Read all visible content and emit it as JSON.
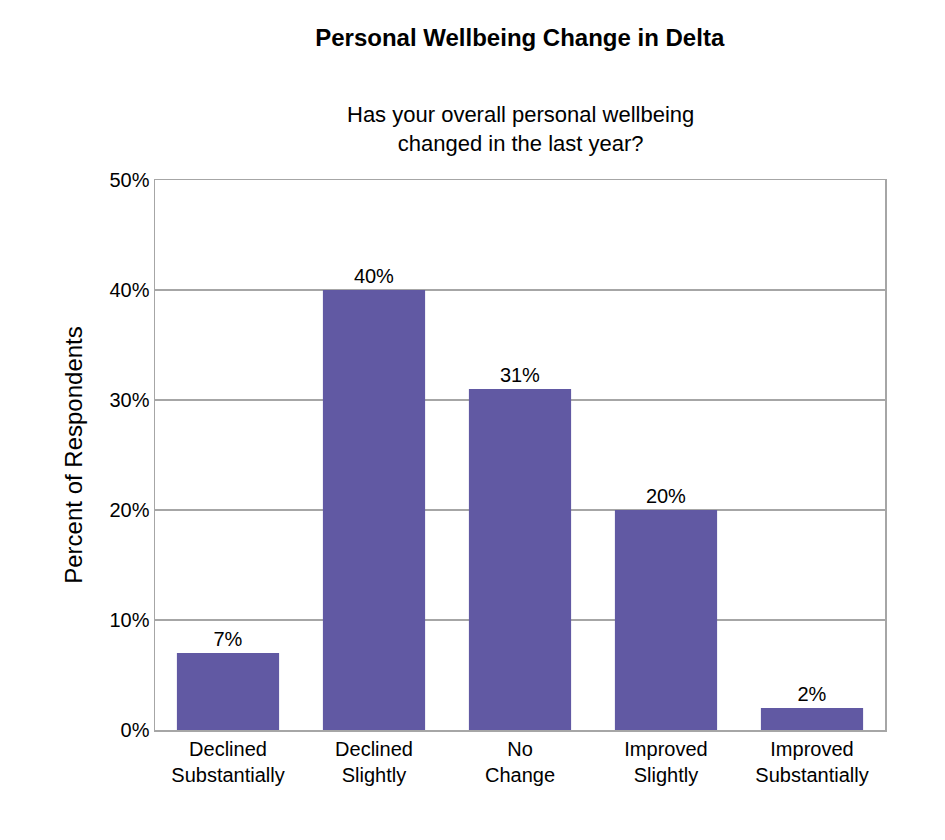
{
  "chart_data": {
    "type": "bar",
    "title": "Personal Wellbeing Change in Delta",
    "subtitle": "Has your overall personal wellbeing changed in the last year?",
    "y_label": "Percent of Respondents",
    "categories": [
      "Declined Substantially",
      "Declined Slightly",
      "No Change",
      "Improved Slightly",
      "Improved Substantially"
    ],
    "values": [
      7,
      40,
      31,
      20,
      2
    ],
    "value_labels": [
      "7%",
      "40%",
      "31%",
      "20%",
      "2%"
    ],
    "color": "#6159a3",
    "ylim": [
      0,
      50
    ],
    "yticks": [
      {
        "value": 0,
        "label": "0%"
      },
      {
        "value": 10,
        "label": "10%"
      },
      {
        "value": 20,
        "label": "20%"
      },
      {
        "value": 30,
        "label": "30%"
      },
      {
        "value": 40,
        "label": "40%"
      },
      {
        "value": 50,
        "label": "50%"
      }
    ],
    "grid": true,
    "data_labels": true
  }
}
